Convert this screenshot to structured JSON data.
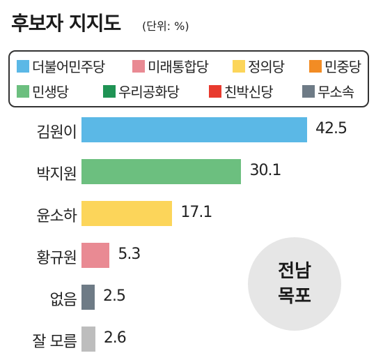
{
  "title": "후보자 지지도",
  "unit": "(단위: %)",
  "badge": {
    "line1": "전남",
    "line2": "목포"
  },
  "legend": [
    {
      "label": "더불어민주당",
      "color": "#5bb8e6"
    },
    {
      "label": "미래통합당",
      "color": "#e98a93"
    },
    {
      "label": "정의당",
      "color": "#fcd55a"
    },
    {
      "label": "민중당",
      "color": "#f28c24"
    },
    {
      "label": "민생당",
      "color": "#6cbf7f"
    },
    {
      "label": "우리공화당",
      "color": "#1f9354"
    },
    {
      "label": "친박신당",
      "color": "#e83a2e"
    },
    {
      "label": "무소속",
      "color": "#6e7b86"
    }
  ],
  "chart_data": {
    "type": "bar",
    "orientation": "horizontal",
    "title": "후보자 지지도",
    "unit": "(단위: %)",
    "categories": [
      "김원이",
      "박지원",
      "윤소하",
      "황규원",
      "없음",
      "잘 모름"
    ],
    "values": [
      42.5,
      30.1,
      17.1,
      5.3,
      2.5,
      2.6
    ],
    "value_labels": [
      "42.5",
      "30.1",
      "17.1",
      "5.3",
      "2.5",
      "2.6"
    ],
    "colors": [
      "#5bb8e6",
      "#6cbf7f",
      "#fcd55a",
      "#e98a93",
      "#6e7b86",
      "#bdbdbd"
    ],
    "xlim": [
      0,
      42.5
    ],
    "grid": false
  }
}
